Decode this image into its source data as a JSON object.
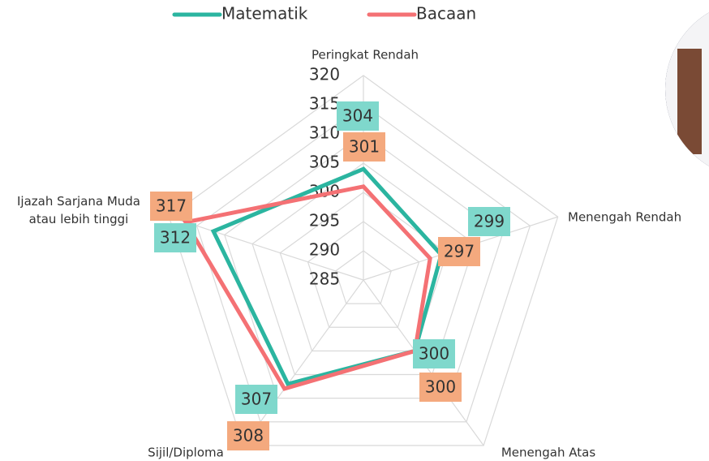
{
  "chart_data": {
    "type": "radar",
    "categories": [
      "Peringkat Rendah",
      "Menengah Rendah",
      "Menengah Atas",
      "Sijil/Diploma",
      "Ijazah Sarjana Muda atau lebih tinggi"
    ],
    "series": [
      {
        "name": "Matematik",
        "color": "#2bb5a0",
        "label_color": "#7fd8cc",
        "values": [
          304,
          299,
          300,
          307,
          312
        ]
      },
      {
        "name": "Bacaan",
        "color": "#f47174",
        "label_color": "#f4a97e",
        "values": [
          301,
          297,
          300,
          308,
          317
        ]
      }
    ],
    "ylim": [
      285,
      320
    ],
    "yticks": [
      285,
      290,
      295,
      300,
      305,
      310,
      315,
      320
    ],
    "grid": true,
    "legend": "top"
  }
}
